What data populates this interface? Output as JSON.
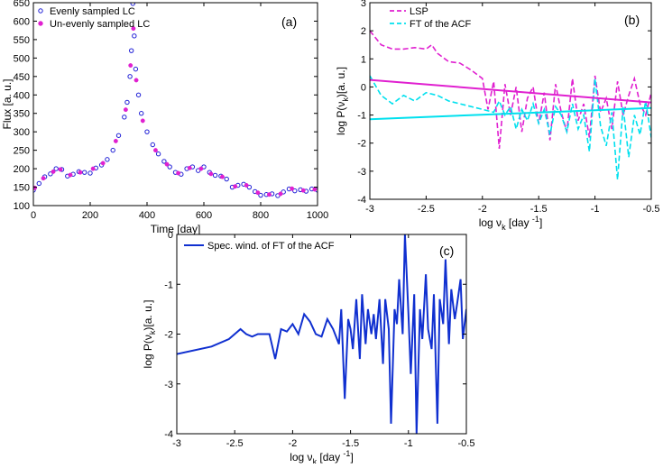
{
  "chart_data": [
    {
      "id": "a",
      "type": "scatter",
      "panel_label": "(a)",
      "xlabel": "Time [day]",
      "ylabel": "Flux [a. u.]",
      "xlim": [
        0,
        1000
      ],
      "ylim": [
        100,
        650
      ],
      "xticks": [
        "0",
        "200",
        "400",
        "600",
        "800",
        "1000"
      ],
      "yticks": [
        "100",
        "150",
        "200",
        "250",
        "300",
        "350",
        "400",
        "450",
        "500",
        "550",
        "600",
        "650"
      ],
      "grid": false,
      "legend_position": "top-left",
      "series": [
        {
          "name": "Evenly sampled LC",
          "marker": "open-circle",
          "color": "#1f1fd6",
          "x": [
            0,
            20,
            40,
            60,
            80,
            100,
            120,
            140,
            160,
            180,
            200,
            220,
            240,
            260,
            280,
            300,
            320,
            330,
            340,
            345,
            350,
            355,
            360,
            370,
            380,
            400,
            420,
            440,
            460,
            480,
            500,
            520,
            540,
            560,
            580,
            600,
            620,
            640,
            660,
            680,
            700,
            720,
            740,
            760,
            780,
            800,
            820,
            840,
            860,
            880,
            900,
            920,
            940,
            960,
            980,
            1000
          ],
          "y": [
            142,
            160,
            178,
            186,
            200,
            198,
            180,
            185,
            192,
            190,
            188,
            202,
            210,
            225,
            250,
            290,
            340,
            380,
            450,
            520,
            648,
            560,
            470,
            400,
            350,
            300,
            265,
            240,
            220,
            205,
            190,
            185,
            200,
            205,
            195,
            205,
            190,
            182,
            180,
            172,
            150,
            155,
            158,
            150,
            138,
            128,
            130,
            132,
            127,
            137,
            145,
            140,
            143,
            139,
            145,
            142
          ]
        },
        {
          "name": "Un-evenly sampled LC",
          "marker": "filled-dot",
          "color": "#e020d0",
          "x": [
            5,
            35,
            70,
            95,
            130,
            165,
            210,
            245,
            290,
            325,
            342,
            352,
            362,
            385,
            430,
            470,
            510,
            550,
            590,
            625,
            665,
            710,
            750,
            790,
            830,
            870,
            910,
            950,
            990
          ],
          "y": [
            148,
            174,
            192,
            198,
            183,
            190,
            200,
            215,
            275,
            360,
            480,
            580,
            440,
            330,
            250,
            212,
            188,
            202,
            200,
            186,
            178,
            152,
            155,
            135,
            130,
            132,
            146,
            141,
            144
          ]
        }
      ]
    },
    {
      "id": "b",
      "type": "line",
      "panel_label": "(b)",
      "xlabel_prefix": "log  ν",
      "xlabel_sub": "k",
      "xlabel_suffix": " [day ",
      "xlabel_sup": "-1",
      "xlabel_end": "]",
      "ylabel_prefix": "log P(ν",
      "ylabel_sub": "k",
      "ylabel_suffix": ")[a. u.]",
      "xlim": [
        -3,
        -0.5
      ],
      "ylim": [
        -4,
        3
      ],
      "xticks": [
        "-3",
        "-2.5",
        "-2",
        "-1.5",
        "-1",
        "-0.5"
      ],
      "yticks": [
        "-4",
        "-3",
        "-2",
        "-1",
        "0",
        "1",
        "2",
        "3"
      ],
      "grid": false,
      "legend_position": "top-left",
      "series": [
        {
          "name": "LSP",
          "style": "dashed",
          "color": "#e020d0",
          "x": [
            -3,
            -2.9,
            -2.8,
            -2.7,
            -2.6,
            -2.5,
            -2.45,
            -2.4,
            -2.3,
            -2.2,
            -2.1,
            -2.0,
            -1.95,
            -1.9,
            -1.85,
            -1.8,
            -1.75,
            -1.7,
            -1.65,
            -1.6,
            -1.55,
            -1.5,
            -1.45,
            -1.4,
            -1.35,
            -1.3,
            -1.25,
            -1.2,
            -1.15,
            -1.1,
            -1.05,
            -1.0,
            -0.95,
            -0.9,
            -0.85,
            -0.8,
            -0.75,
            -0.7,
            -0.65,
            -0.6,
            -0.55,
            -0.5
          ],
          "y": [
            2.0,
            1.5,
            1.35,
            1.35,
            1.4,
            1.35,
            1.5,
            1.2,
            0.9,
            0.85,
            0.6,
            0.3,
            -0.8,
            0.2,
            -2.2,
            0.1,
            -1.0,
            0.0,
            -1.6,
            -0.4,
            0.0,
            -1.3,
            -0.2,
            -1.9,
            0.1,
            -0.9,
            -1.6,
            0.3,
            -1.2,
            -0.6,
            -1.8,
            0.4,
            -0.9,
            -0.4,
            -1.5,
            0.2,
            -1.0,
            -0.3,
            0.3,
            -0.6,
            -1.0,
            -0.2
          ]
        },
        {
          "name": "FT of the ACF",
          "style": "dashed",
          "color": "#00e0ee",
          "x": [
            -3,
            -2.9,
            -2.8,
            -2.7,
            -2.6,
            -2.5,
            -2.4,
            -2.3,
            -2.2,
            -2.1,
            -2.0,
            -1.9,
            -1.85,
            -1.8,
            -1.75,
            -1.7,
            -1.65,
            -1.6,
            -1.55,
            -1.5,
            -1.45,
            -1.4,
            -1.35,
            -1.3,
            -1.25,
            -1.2,
            -1.15,
            -1.1,
            -1.05,
            -1.0,
            -0.95,
            -0.9,
            -0.85,
            -0.8,
            -0.75,
            -0.7,
            -0.65,
            -0.6,
            -0.55,
            -0.5
          ],
          "y": [
            0.4,
            -0.3,
            -0.6,
            -0.3,
            -0.5,
            -0.2,
            -0.3,
            -0.5,
            -0.6,
            -0.7,
            -0.8,
            -0.9,
            -0.5,
            -1.0,
            -0.7,
            -1.5,
            -0.8,
            -1.2,
            -0.6,
            -1.3,
            -0.8,
            -1.7,
            -0.7,
            -1.0,
            -1.6,
            -0.6,
            -1.5,
            -1.0,
            -2.3,
            0.3,
            -1.4,
            -2.1,
            -0.9,
            -3.3,
            -0.7,
            -2.5,
            -1.0,
            -1.7,
            -0.5,
            -1.8
          ]
        },
        {
          "name": "LSP fit",
          "style": "solid",
          "color": "#e020d0",
          "x": [
            -3,
            -0.5
          ],
          "y": [
            0.25,
            -0.55
          ]
        },
        {
          "name": "FT fit",
          "style": "solid",
          "color": "#00e0ee",
          "x": [
            -3,
            -0.5
          ],
          "y": [
            -1.15,
            -0.75
          ]
        }
      ]
    },
    {
      "id": "c",
      "type": "line",
      "panel_label": "(c)",
      "xlabel_prefix": "log  ν",
      "xlabel_sub": "k",
      "xlabel_suffix": " [day ",
      "xlabel_sup": "-1",
      "xlabel_end": "]",
      "ylabel_prefix": "log P(ν",
      "ylabel_sub": "k",
      "ylabel_suffix": ")[a. u.]",
      "xlim": [
        -3,
        -0.5
      ],
      "ylim": [
        -4,
        0
      ],
      "xticks": [
        "-3",
        "-2.5",
        "-2",
        "-1.5",
        "-1",
        "-0.5"
      ],
      "yticks": [
        "-4",
        "-3",
        "-2",
        "-1",
        "0"
      ],
      "grid": false,
      "legend_position": "top-left",
      "series": [
        {
          "name": "Spec. wind. of FT of the ACF",
          "style": "solid",
          "color": "#1030d0",
          "x": [
            -3,
            -2.7,
            -2.55,
            -2.45,
            -2.4,
            -2.35,
            -2.3,
            -2.2,
            -2.15,
            -2.1,
            -2.05,
            -2.0,
            -1.95,
            -1.9,
            -1.85,
            -1.8,
            -1.75,
            -1.7,
            -1.65,
            -1.6,
            -1.58,
            -1.55,
            -1.52,
            -1.5,
            -1.48,
            -1.45,
            -1.42,
            -1.4,
            -1.37,
            -1.35,
            -1.32,
            -1.3,
            -1.28,
            -1.25,
            -1.22,
            -1.2,
            -1.17,
            -1.15,
            -1.12,
            -1.1,
            -1.08,
            -1.05,
            -1.03,
            -1.0,
            -0.98,
            -0.95,
            -0.93,
            -0.9,
            -0.88,
            -0.85,
            -0.83,
            -0.8,
            -0.78,
            -0.75,
            -0.73,
            -0.7,
            -0.68,
            -0.65,
            -0.63,
            -0.6,
            -0.58,
            -0.55,
            -0.53,
            -0.5
          ],
          "y": [
            -2.4,
            -2.25,
            -2.1,
            -1.9,
            -2.0,
            -2.05,
            -2.0,
            -2.0,
            -2.5,
            -1.9,
            -1.95,
            -1.8,
            -2.0,
            -1.6,
            -1.75,
            -2.0,
            -2.05,
            -1.7,
            -1.9,
            -2.2,
            -1.5,
            -3.3,
            -1.7,
            -1.9,
            -2.3,
            -1.3,
            -2.5,
            -1.2,
            -2.2,
            -1.5,
            -2.0,
            -1.6,
            -2.1,
            -1.3,
            -2.6,
            -1.3,
            -1.9,
            -3.8,
            -1.5,
            -1.8,
            -0.9,
            -2.0,
            0.0,
            -1.6,
            -2.8,
            -1.2,
            -4.0,
            -1.5,
            -2.1,
            -0.8,
            -1.9,
            -2.3,
            -1.2,
            -3.8,
            -1.3,
            -1.8,
            -0.5,
            -2.2,
            -1.1,
            -1.7,
            -1.4,
            -0.9,
            -2.1,
            -1.5
          ]
        }
      ]
    }
  ]
}
